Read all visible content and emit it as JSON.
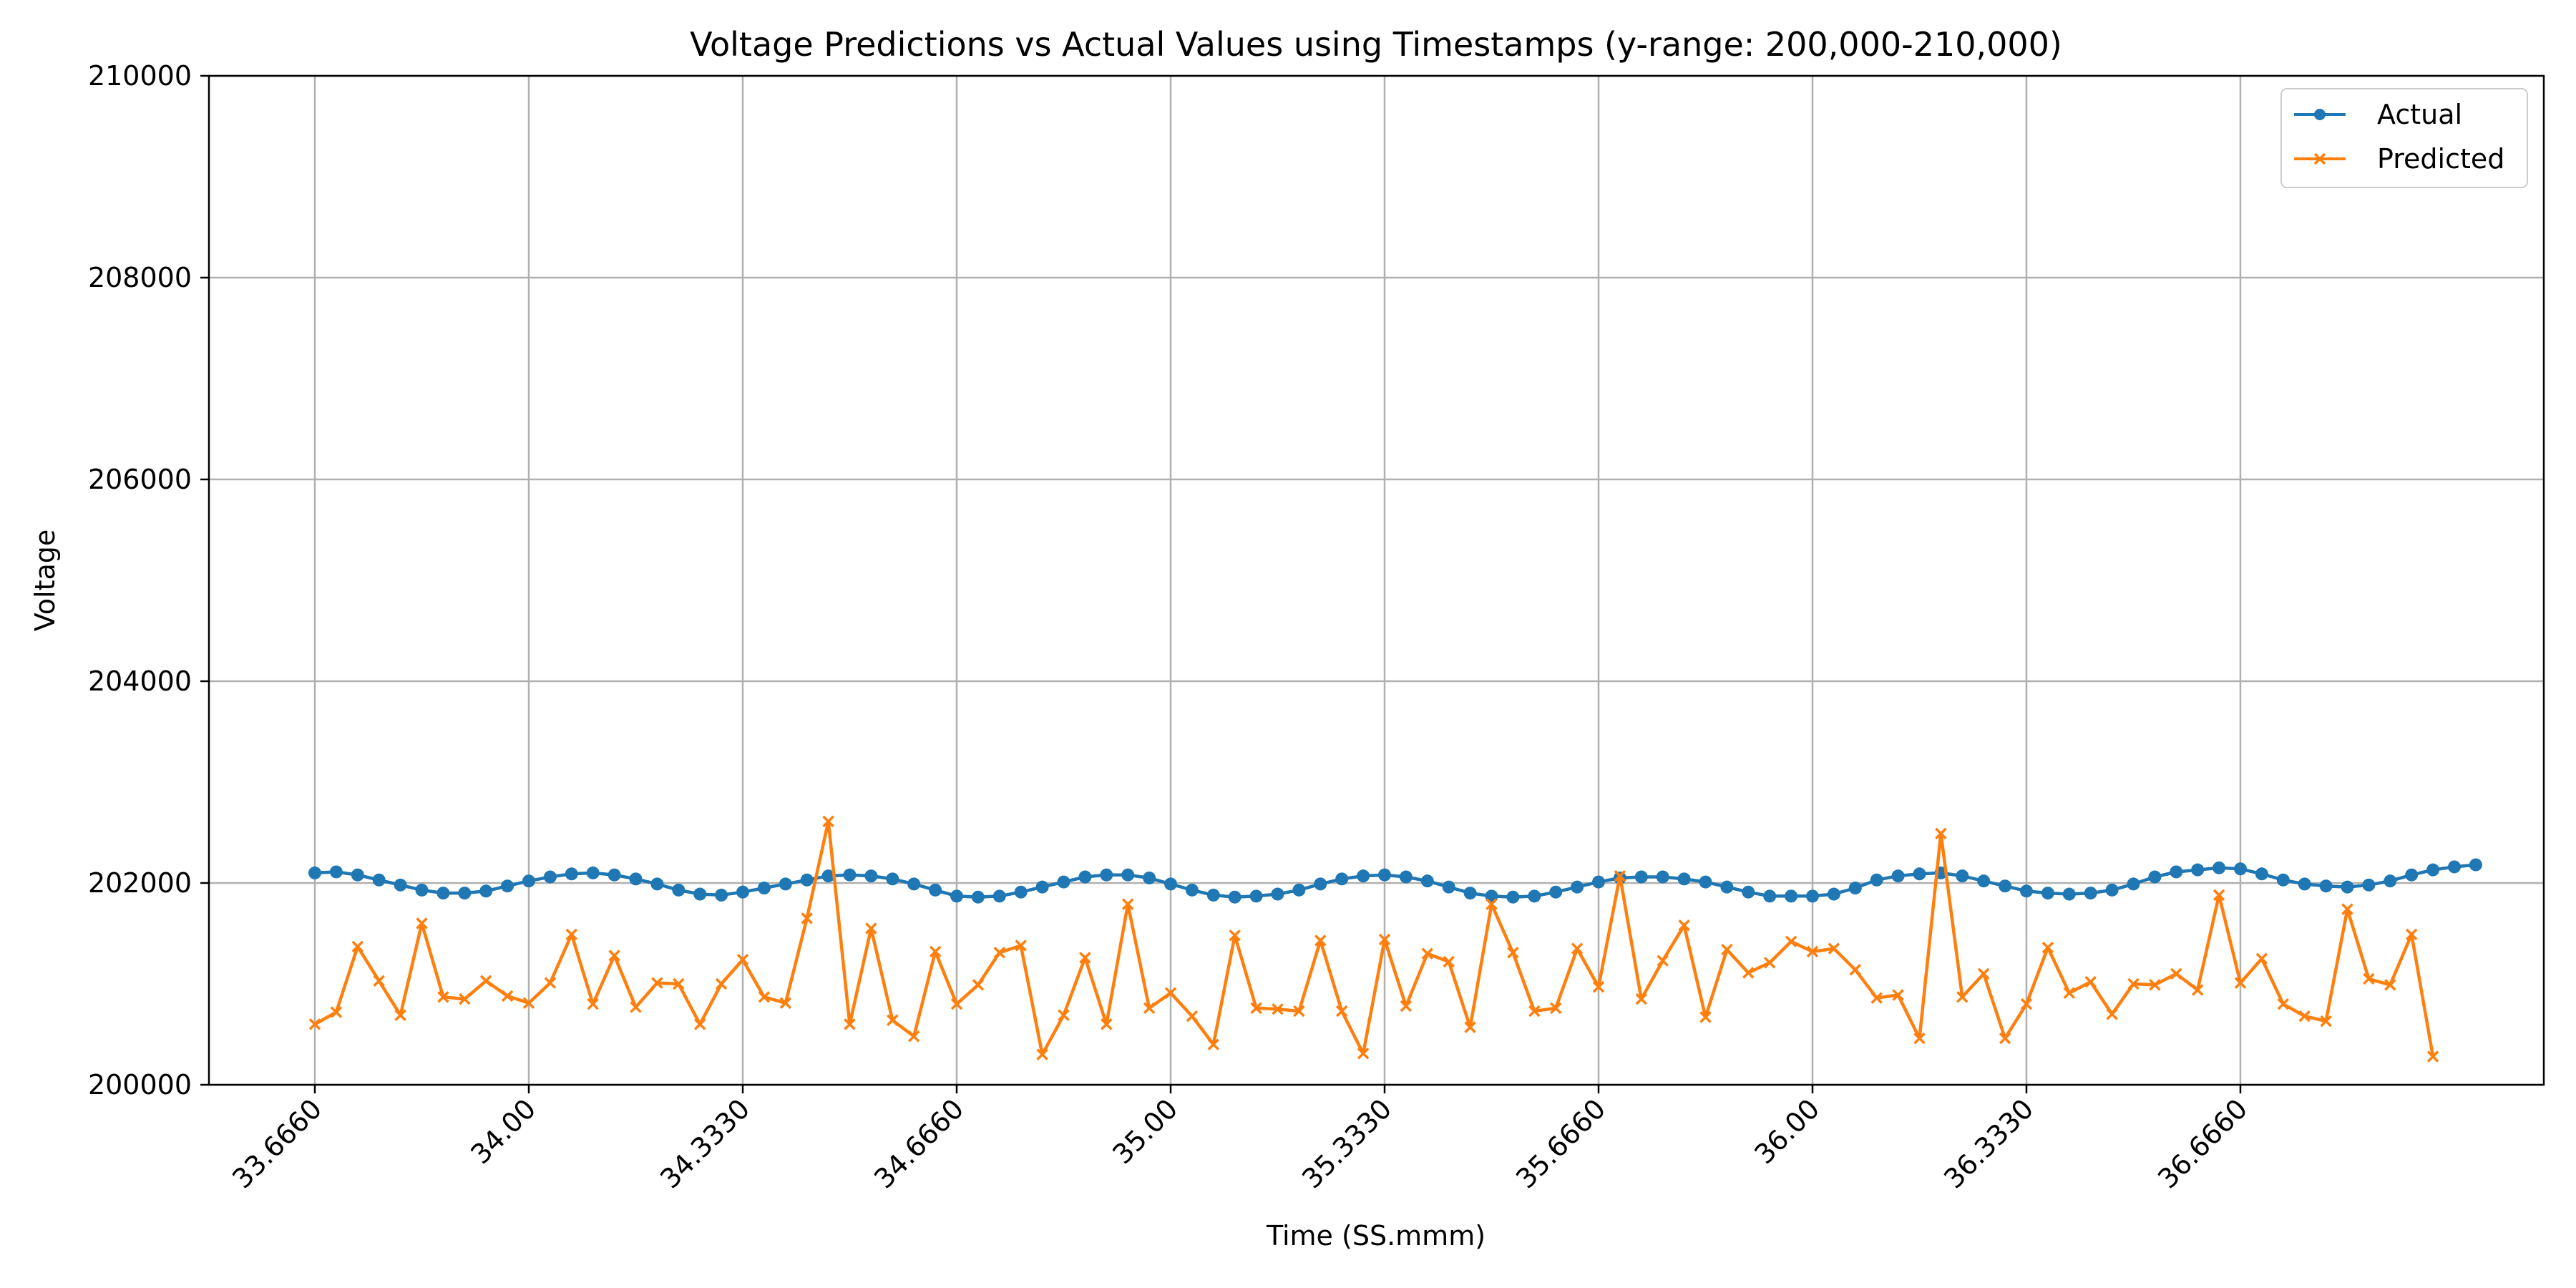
{
  "chart_data": {
    "type": "line",
    "title": "Voltage Predictions vs Actual Values using Timestamps (y-range: 200,000-210,000)",
    "xlabel": "Time (SS.mmm)",
    "ylabel": "Voltage",
    "ylim": [
      200000,
      210000
    ],
    "yticks": [
      200000,
      202000,
      204000,
      206000,
      208000,
      210000
    ],
    "xtick_labels": [
      "33.6660",
      "34.00",
      "34.3330",
      "34.6660",
      "35.00",
      "35.3330",
      "35.6660",
      "36.00",
      "36.3330",
      "36.6660"
    ],
    "xtick_index_step": 10,
    "grid": true,
    "legend_position": "top-right",
    "colors": {
      "actual": "#1f77b4",
      "predicted": "#ff7f0e",
      "grid": "#b0b0b0"
    },
    "series": [
      {
        "name": "Actual",
        "marker": "circle",
        "values": [
          202100,
          202110,
          202080,
          202030,
          201980,
          201930,
          201900,
          201900,
          201920,
          201970,
          202020,
          202060,
          202090,
          202100,
          202080,
          202040,
          201990,
          201930,
          201890,
          201880,
          201910,
          201950,
          201990,
          202030,
          202070,
          202080,
          202070,
          202040,
          201990,
          201930,
          201870,
          201860,
          201870,
          201910,
          201960,
          202010,
          202060,
          202080,
          202080,
          202050,
          201990,
          201930,
          201880,
          201860,
          201870,
          201890,
          201930,
          201990,
          202040,
          202070,
          202080,
          202060,
          202020,
          201960,
          201900,
          201870,
          201860,
          201870,
          201910,
          201960,
          202010,
          202050,
          202060,
          202060,
          202040,
          202010,
          201960,
          201910,
          201870,
          201870,
          201870,
          201890,
          201950,
          202030,
          202070,
          202090,
          202100,
          202070,
          202020,
          201970,
          201920,
          201900,
          201890,
          201900,
          201930,
          201990,
          202060,
          202110,
          202130,
          202150,
          202140,
          202090,
          202030,
          201990,
          201970,
          201960,
          201980,
          202020,
          202080,
          202130,
          202160,
          202180
        ]
      },
      {
        "name": "Predicted",
        "marker": "x",
        "values": [
          200600,
          200720,
          201370,
          201030,
          200690,
          201600,
          200870,
          200850,
          201030,
          200880,
          200810,
          201010,
          201490,
          200800,
          201280,
          200770,
          201010,
          201000,
          200600,
          201000,
          201240,
          200870,
          200810,
          201650,
          202610,
          200600,
          201550,
          200640,
          200480,
          201320,
          200800,
          200990,
          201310,
          201380,
          200300,
          200690,
          201260,
          200600,
          201790,
          200760,
          200910,
          200680,
          200400,
          201480,
          200760,
          200750,
          200730,
          201430,
          200730,
          200310,
          201440,
          200780,
          201300,
          201220,
          200570,
          201790,
          201310,
          200730,
          200760,
          201350,
          200970,
          202070,
          200850,
          201230,
          201580,
          200670,
          201340,
          201110,
          201210,
          201420,
          201320,
          201350,
          201140,
          200860,
          200890,
          200460,
          202490,
          200870,
          201100,
          200460,
          200800,
          201360,
          200910,
          201020,
          200700,
          201000,
          200990,
          201100,
          200940,
          201880,
          201010,
          201250,
          200800,
          200680,
          200630,
          201740,
          201050,
          200990,
          201490,
          200280
        ]
      }
    ]
  }
}
